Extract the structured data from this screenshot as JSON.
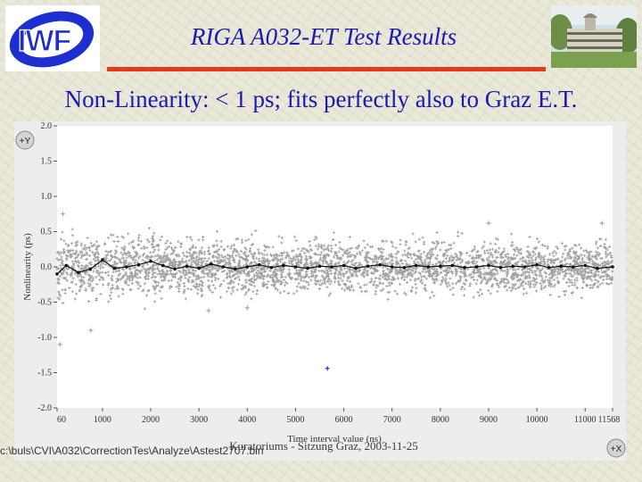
{
  "header": {
    "logo_text": "IWF",
    "title": "RIGA A032-ET Test Results",
    "subtitle": "Non-Linearity: < 1 ps; fits perfectly also to Graz E.T."
  },
  "footer": {
    "file_path": "c:\\buls\\CVI\\A032\\CorrectionTes\\Analyze\\Astest2707.bin",
    "meta": "Kuratoriums - Sitzung Graz, 2003-11-25"
  },
  "chart_data": {
    "type": "scatter",
    "title": "",
    "xlabel": "Time interval value (ns)",
    "ylabel": "Nonlinearity (ps)",
    "xlim": [
      60,
      11568
    ],
    "ylim": [
      -2.0,
      2.0
    ],
    "x_ticks": [
      60,
      1000,
      2000,
      3000,
      4000,
      5000,
      6000,
      7000,
      8000,
      9000,
      10000,
      11000,
      11568
    ],
    "x_tick_labels": [
      "60",
      "1000",
      "2000",
      "3000",
      "4000",
      "5000",
      "6000",
      "7000",
      "8000",
      "9000",
      "10000",
      "11000",
      "11568"
    ],
    "y_ticks": [
      2.0,
      1.5,
      1.0,
      0.5,
      0.0,
      -0.5,
      -1.0,
      -1.5,
      -2.0
    ],
    "y_tick_labels": [
      "2.0",
      "1.5",
      "1.0",
      "0.5",
      "0.0",
      "-0.5",
      "-1.0",
      "-1.5",
      "-2.0"
    ],
    "y_cursor_label": "+Y",
    "x_cursor_label": "+X",
    "colors": {
      "scatter": "#a0a0a0",
      "line": "#111111",
      "outlier": "#2222aa",
      "plot_bg": "#ffffff"
    },
    "scatter_band": {
      "x_range": [
        60,
        11568
      ],
      "y_center": 0.0,
      "y_spread_ps": 0.45
    },
    "outlier_points": [
      {
        "x": 5660,
        "y": -1.44
      },
      {
        "x": 760,
        "y": -0.9
      },
      {
        "x": 120,
        "y": -1.1
      },
      {
        "x": 180,
        "y": 0.75
      },
      {
        "x": 9000,
        "y": 0.62
      },
      {
        "x": 11350,
        "y": 0.62
      },
      {
        "x": 3200,
        "y": -0.62
      },
      {
        "x": 4000,
        "y": -0.58
      }
    ],
    "series": [
      {
        "name": "",
        "x": [
          60,
          250,
          500,
          750,
          1000,
          1250,
          1500,
          1750,
          2000,
          2250,
          2500,
          2750,
          3000,
          3250,
          3500,
          3750,
          4000,
          4250,
          4500,
          4750,
          5000,
          5250,
          5500,
          5750,
          6000,
          6250,
          6500,
          6750,
          7000,
          7250,
          7500,
          7750,
          8000,
          8250,
          8500,
          8750,
          9000,
          9250,
          9500,
          9750,
          10000,
          10250,
          10500,
          10750,
          11000,
          11250,
          11568
        ],
        "y": [
          -0.1,
          0.02,
          -0.08,
          -0.03,
          0.1,
          -0.02,
          0.0,
          0.03,
          0.08,
          0.02,
          -0.03,
          0.01,
          -0.02,
          0.04,
          0.0,
          -0.03,
          0.0,
          0.03,
          -0.01,
          0.02,
          0.0,
          -0.02,
          0.01,
          0.0,
          0.02,
          -0.02,
          0.01,
          0.03,
          0.0,
          -0.01,
          0.02,
          0.0,
          0.01,
          0.02,
          -0.01,
          0.0,
          0.02,
          -0.01,
          0.01,
          0.0,
          0.03,
          -0.01,
          0.01,
          0.0,
          0.02,
          -0.02,
          0.0
        ]
      }
    ]
  }
}
